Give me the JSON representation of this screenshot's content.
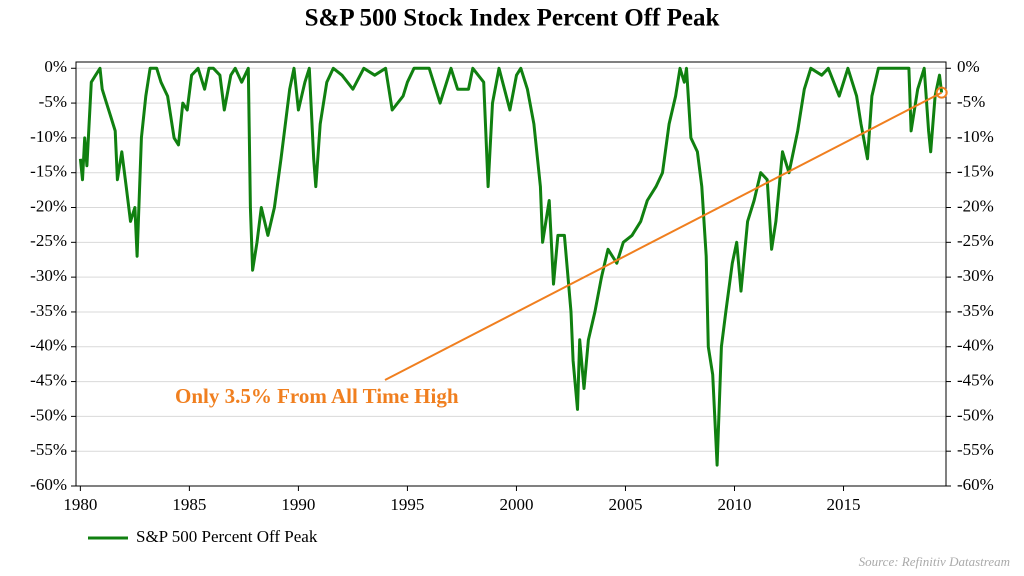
{
  "chart_data": {
    "type": "line",
    "title": "S&P 500 Stock Index Percent Off Peak",
    "source": "Source: Refinitiv Datastream",
    "annotation": {
      "text": "Only 3.5% From All Time High",
      "color": "#f07f1f"
    },
    "grid": true,
    "legend": "bottom-left",
    "xlim": [
      1979.8,
      2019.7
    ],
    "xticks": [
      1980,
      1985,
      1990,
      1995,
      2000,
      2005,
      2010,
      2015
    ],
    "ylim": [
      -60,
      0.9
    ],
    "yticks": [
      {
        "value": 0,
        "label": "0%"
      },
      {
        "value": -5,
        "label": "-5%"
      },
      {
        "value": -10,
        "label": "-10%"
      },
      {
        "value": -15,
        "label": "-15%"
      },
      {
        "value": -20,
        "label": "-20%"
      },
      {
        "value": -25,
        "label": "-25%"
      },
      {
        "value": -30,
        "label": "-30%"
      },
      {
        "value": -35,
        "label": "-35%"
      },
      {
        "value": -40,
        "label": "-40%"
      },
      {
        "value": -45,
        "label": "-45%"
      },
      {
        "value": -50,
        "label": "-50%"
      },
      {
        "value": -55,
        "label": "-55%"
      },
      {
        "value": -60,
        "label": "-60%"
      }
    ],
    "y2lim": [
      -60,
      0.9
    ],
    "y2ticks": [
      {
        "value": 0,
        "label": "0%"
      },
      {
        "value": -5,
        "label": "-5%"
      },
      {
        "value": -10,
        "label": "-10%"
      },
      {
        "value": -15,
        "label": "-15%"
      },
      {
        "value": -20,
        "label": "-20%"
      },
      {
        "value": -25,
        "label": "-25%"
      },
      {
        "value": -30,
        "label": "-30%"
      },
      {
        "value": -35,
        "label": "-35%"
      },
      {
        "value": -40,
        "label": "-40%"
      },
      {
        "value": -45,
        "label": "-45%"
      },
      {
        "value": -50,
        "label": "-50%"
      },
      {
        "value": -55,
        "label": "-55%"
      },
      {
        "value": -60,
        "label": "-60%"
      }
    ],
    "x": [
      1980.0,
      1980.1,
      1980.2,
      1980.3,
      1980.4,
      1980.5,
      1980.7,
      1980.9,
      1981.0,
      1981.2,
      1981.4,
      1981.6,
      1981.7,
      1981.9,
      1982.1,
      1982.3,
      1982.5,
      1982.6,
      1982.8,
      1983.0,
      1983.2,
      1983.5,
      1983.7,
      1984.0,
      1984.3,
      1984.5,
      1984.7,
      1984.9,
      1985.1,
      1985.4,
      1985.7,
      1985.9,
      1986.1,
      1986.4,
      1986.6,
      1986.9,
      1987.1,
      1987.4,
      1987.7,
      1987.8,
      1987.9,
      1988.1,
      1988.3,
      1988.6,
      1988.9,
      1989.2,
      1989.6,
      1989.8,
      1990.0,
      1990.3,
      1990.5,
      1990.7,
      1990.8,
      1991.0,
      1991.3,
      1991.6,
      1992.0,
      1992.5,
      1993.0,
      1993.5,
      1994.0,
      1994.3,
      1994.8,
      1995.0,
      1995.3,
      1996.0,
      1996.5,
      1997.0,
      1997.3,
      1997.8,
      1998.0,
      1998.5,
      1998.7,
      1998.9,
      1999.2,
      1999.7,
      2000.0,
      2000.2,
      2000.5,
      2000.8,
      2001.1,
      2001.2,
      2001.5,
      2001.7,
      2001.9,
      2002.2,
      2002.5,
      2002.6,
      2002.8,
      2002.9,
      2003.1,
      2003.3,
      2003.6,
      2003.9,
      2004.2,
      2004.6,
      2004.9,
      2005.3,
      2005.7,
      2006.0,
      2006.4,
      2006.7,
      2007.0,
      2007.3,
      2007.5,
      2007.7,
      2007.8,
      2008.0,
      2008.3,
      2008.5,
      2008.7,
      2008.8,
      2009.0,
      2009.2,
      2009.4,
      2009.6,
      2009.9,
      2010.1,
      2010.3,
      2010.6,
      2010.9,
      2011.2,
      2011.5,
      2011.7,
      2011.9,
      2012.2,
      2012.5,
      2012.9,
      2013.2,
      2013.5,
      2014.0,
      2014.3,
      2014.8,
      2015.2,
      2015.6,
      2015.8,
      2016.1,
      2016.3,
      2016.6,
      2017.0,
      2017.5,
      2018.0,
      2018.1,
      2018.4,
      2018.7,
      2018.9,
      2019.0,
      2019.2,
      2019.4,
      2019.5
    ],
    "series": [
      {
        "name": "S&P 500 Percent Off Peak",
        "color": "#108010",
        "values": [
          -13,
          -16,
          -10,
          -14,
          -8,
          -2,
          -1,
          0,
          -3,
          -5,
          -7,
          -9,
          -16,
          -12,
          -17,
          -22,
          -20,
          -27,
          -10,
          -4,
          0,
          0,
          -2,
          -4,
          -10,
          -11,
          -5,
          -6,
          -1,
          0,
          -3,
          0,
          0,
          -1,
          -6,
          -1,
          0,
          -2,
          0,
          -20,
          -29,
          -25,
          -20,
          -24,
          -20,
          -13,
          -3,
          0,
          -6,
          -2,
          0,
          -13,
          -17,
          -8,
          -2,
          0,
          -1,
          -3,
          0,
          -1,
          0,
          -6,
          -4,
          -2,
          0,
          0,
          -5,
          0,
          -3,
          -3,
          0,
          -2,
          -17,
          -5,
          0,
          -6,
          -1,
          0,
          -3,
          -8,
          -17,
          -25,
          -19,
          -31,
          -24,
          -24,
          -35,
          -42,
          -49,
          -39,
          -46,
          -39,
          -35,
          -30,
          -26,
          -28,
          -25,
          -24,
          -22,
          -19,
          -17,
          -15,
          -8,
          -4,
          0,
          -2,
          0,
          -10,
          -12,
          -17,
          -27,
          -40,
          -44,
          -57,
          -40,
          -35,
          -28,
          -25,
          -32,
          -22,
          -19,
          -15,
          -16,
          -26,
          -22,
          -12,
          -15,
          -9,
          -3,
          0,
          -1,
          0,
          -4,
          0,
          -4,
          -8,
          -13,
          -4,
          0,
          0,
          0,
          0,
          -9,
          -3,
          0,
          -9,
          -12,
          -4,
          -1,
          -3.5
        ]
      }
    ]
  }
}
